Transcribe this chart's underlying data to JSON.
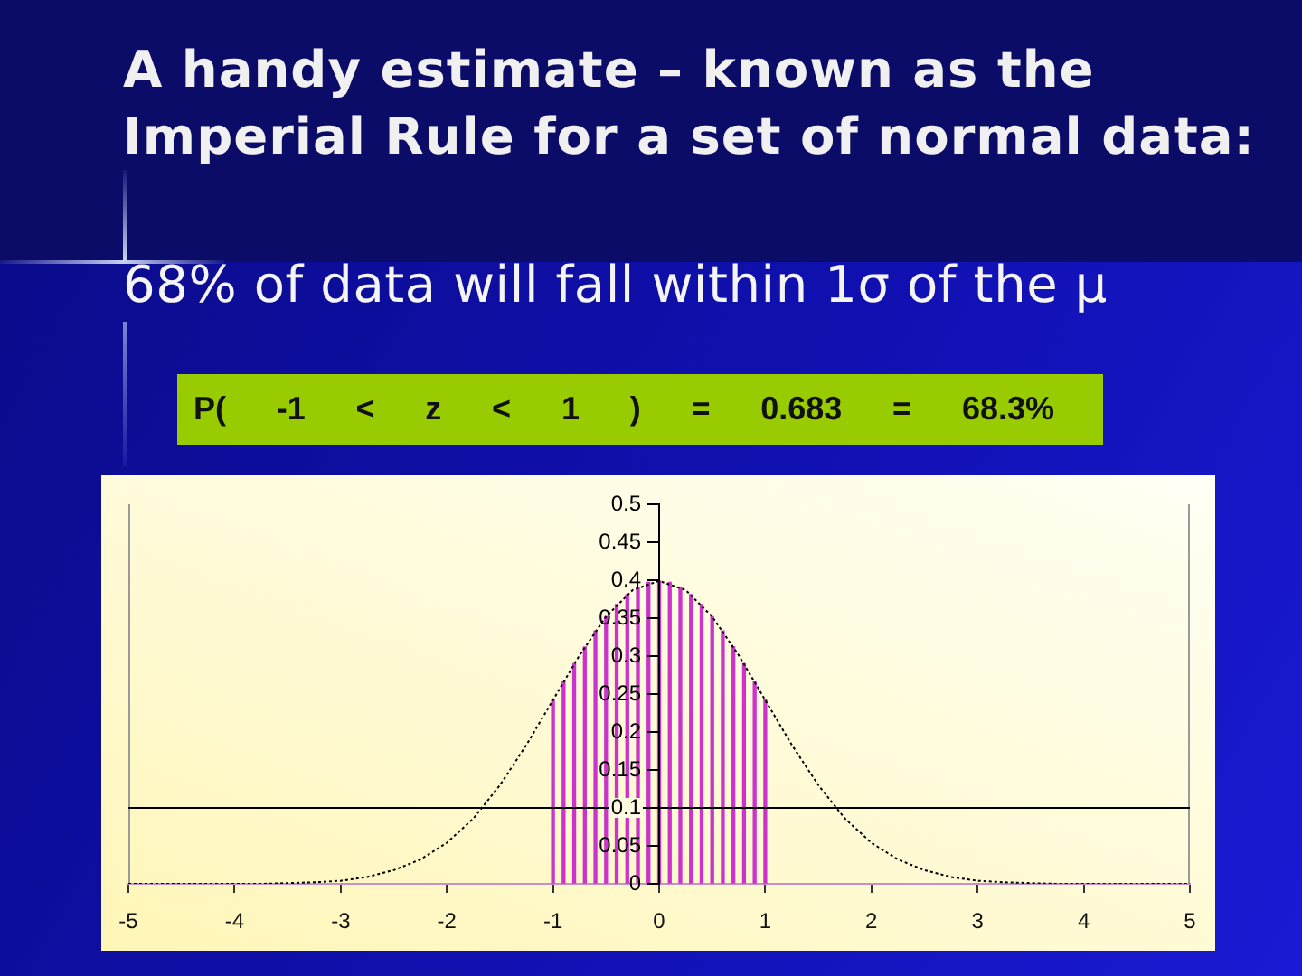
{
  "chart_data": {
    "type": "line",
    "title": "A handy estimate – known as the Imperial Rule for a set of normal data:",
    "subtitle": "68% of data will fall within 1σ of the μ",
    "annotations": [
      "P( -1 < z < 1 ) = 0.683 = 68.3%"
    ],
    "xlim": [
      -5,
      5
    ],
    "xticks": [
      -5,
      -4,
      -3,
      -2,
      -1,
      0,
      1,
      2,
      3,
      4,
      5
    ],
    "ylim": [
      0,
      0.5
    ],
    "yticks": [
      0,
      0.05,
      0.1,
      0.15,
      0.2,
      0.25,
      0.3,
      0.35,
      0.4,
      0.45,
      0.5
    ],
    "line_style": "dotted",
    "series": [
      {
        "type": "bar",
        "color": "#cc33cc",
        "x": [
          -1,
          -0.9,
          -0.8,
          -0.7,
          -0.6,
          -0.5,
          -0.4,
          -0.3,
          -0.2,
          -0.1,
          0,
          0.1,
          0.2,
          0.3,
          0.4,
          0.5,
          0.6,
          0.7,
          0.8,
          0.9,
          1
        ],
        "values": [
          0.242,
          0.266,
          0.29,
          0.312,
          0.333,
          0.352,
          0.368,
          0.381,
          0.391,
          0.397,
          0.399,
          0.397,
          0.391,
          0.381,
          0.368,
          0.352,
          0.333,
          0.312,
          0.29,
          0.266,
          0.242
        ]
      },
      {
        "type": "line",
        "color": "#000000",
        "x": [
          -5,
          -4.5,
          -4,
          -3.75,
          -3.5,
          -3.25,
          -3,
          -2.75,
          -2.5,
          -2.25,
          -2,
          -1.75,
          -1.5,
          -1.25,
          -1,
          -0.75,
          -0.5,
          -0.25,
          0,
          0.25,
          0.5,
          0.75,
          1,
          1.25,
          1.5,
          1.75,
          2,
          2.25,
          2.5,
          2.75,
          3,
          3.25,
          3.5,
          3.75,
          4,
          4.5,
          5
        ],
        "values": [
          0,
          0,
          0,
          0,
          0.001,
          0.002,
          0.004,
          0.009,
          0.018,
          0.032,
          0.054,
          0.086,
          0.13,
          0.183,
          0.242,
          0.301,
          0.352,
          0.387,
          0.399,
          0.387,
          0.352,
          0.301,
          0.242,
          0.183,
          0.13,
          0.086,
          0.054,
          0.032,
          0.018,
          0.009,
          0.004,
          0.002,
          0.001,
          0,
          0,
          0,
          0
        ]
      }
    ],
    "ref_lines": [
      {
        "axis": "y",
        "value": 0.1,
        "color": "#000000"
      }
    ]
  }
}
